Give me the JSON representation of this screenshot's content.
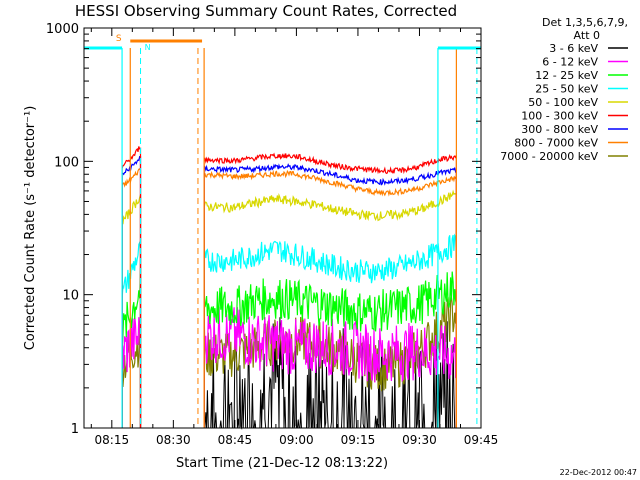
{
  "chart_data": {
    "type": "line",
    "title": "HESSI Observing Summary Count Rates, Corrected",
    "xlabel": "Start Time (21-Dec-12 08:13:22)",
    "ylabel": "Corrected Count Rate (s⁻¹ detector⁻¹)",
    "y_scale": "log",
    "ylim": [
      1,
      1000
    ],
    "xlim_minutes": [
      8.22,
      105.0
    ],
    "x_ticks": [
      {
        "label": "08:15",
        "t": 15
      },
      {
        "label": "08:30",
        "t": 30
      },
      {
        "label": "08:45",
        "t": 45
      },
      {
        "label": "09:00",
        "t": 60
      },
      {
        "label": "09:15",
        "t": 75
      },
      {
        "label": "09:30",
        "t": 90
      },
      {
        "label": "09:45",
        "t": 105
      }
    ],
    "y_ticks": [
      {
        "label": "1",
        "v": 1
      },
      {
        "label": "10",
        "v": 10
      },
      {
        "label": "100",
        "v": 100
      },
      {
        "label": "1000",
        "v": 1000
      }
    ],
    "legend": {
      "placement": "right",
      "header": [
        "Det 1,3,5,6,7,9,",
        "Att 0"
      ],
      "entries": [
        {
          "label": "3 - 6 keV",
          "color": "#000000"
        },
        {
          "label": "6 - 12 keV",
          "color": "#ff00ff"
        },
        {
          "label": "12 - 25 keV",
          "color": "#00ff00"
        },
        {
          "label": "25 - 50 keV",
          "color": "#00ffff"
        },
        {
          "label": "50 - 100 keV",
          "color": "#d8d800"
        },
        {
          "label": "100 - 300 keV",
          "color": "#ff0000"
        },
        {
          "label": "300 - 800 keV",
          "color": "#0000ff"
        },
        {
          "label": "800 - 7000 keV",
          "color": "#ff8000"
        },
        {
          "label": "7000 - 20000 keV",
          "color": "#808000"
        }
      ]
    },
    "data_gap_minutes": [
      22.5,
      37.5
    ],
    "series": [
      {
        "name": "100 - 300 keV",
        "color": "#ff0000",
        "segments": [
          {
            "t": [
              17.5,
              19.0,
              20.5,
              22.0
            ],
            "v": [
              92,
              100,
              112,
              130
            ]
          },
          {
            "t": [
              37.5,
              45,
              50,
              55,
              60,
              65,
              70,
              75,
              80,
              85,
              90,
              95,
              99
            ],
            "v": [
              103,
              101,
              106,
              110,
              109,
              100,
              92,
              88,
              85,
              85,
              91,
              103,
              108
            ]
          }
        ]
      },
      {
        "name": "300 - 800 keV",
        "color": "#0000ff",
        "segments": [
          {
            "t": [
              17.5,
              19.0,
              20.5,
              22.0
            ],
            "v": [
              80,
              86,
              95,
              108
            ]
          },
          {
            "t": [
              37.5,
              45,
              50,
              55,
              60,
              65,
              70,
              75,
              80,
              85,
              90,
              95,
              99
            ],
            "v": [
              88,
              86,
              88,
              91,
              90,
              85,
              78,
              72,
              70,
              71,
              75,
              82,
              85
            ]
          }
        ]
      },
      {
        "name": "800 - 7000 keV",
        "color": "#ff8000",
        "segments": [
          {
            "t": [
              17.5,
              19.0,
              20.5,
              22.0
            ],
            "v": [
              65,
              70,
              78,
              88
            ]
          },
          {
            "t": [
              37.5,
              45,
              50,
              55,
              60,
              65,
              70,
              75,
              80,
              85,
              90,
              95,
              99
            ],
            "v": [
              80,
              77,
              78,
              81,
              80,
              74,
              68,
              62,
              58,
              59,
              63,
              70,
              75
            ]
          }
        ]
      },
      {
        "name": "50 - 100 keV",
        "color": "#d8d800",
        "segments": [
          {
            "t": [
              17.5,
              19.0,
              20.5,
              22.0
            ],
            "v": [
              35,
              40,
              47,
              55
            ]
          },
          {
            "t": [
              37.5,
              45,
              50,
              55,
              60,
              65,
              70,
              75,
              80,
              85,
              90,
              95,
              99
            ],
            "v": [
              46,
              45,
              49,
              52,
              50,
              47,
              43,
              40,
              39,
              40,
              43,
              50,
              58
            ]
          }
        ]
      },
      {
        "name": "25 - 50 keV",
        "color": "#00ffff",
        "segments": [
          {
            "t": [
              17.5,
              19.0,
              20.5,
              22.0
            ],
            "v": [
              10,
              13,
              17,
              22
            ]
          },
          {
            "t": [
              37.5,
              45,
              50,
              55,
              60,
              65,
              70,
              75,
              80,
              85,
              90,
              95,
              99
            ],
            "v": [
              18,
              18,
              20,
              22,
              20,
              18,
              16,
              15,
              15,
              16,
              18,
              21,
              24
            ]
          }
        ]
      },
      {
        "name": "12 - 25 keV",
        "color": "#00ff00",
        "segments": [
          {
            "t": [
              17.5,
              19.0,
              20.5,
              22.0
            ],
            "v": [
              5,
              6.5,
              8.5,
              11
            ]
          },
          {
            "t": [
              37.5,
              45,
              50,
              55,
              60,
              65,
              70,
              75,
              80,
              85,
              90,
              95,
              99
            ],
            "v": [
              8,
              8,
              9,
              9.5,
              9,
              8.5,
              8,
              7.5,
              7.5,
              8,
              8.5,
              10,
              11.5
            ]
          }
        ]
      },
      {
        "name": "6 - 12 keV",
        "color": "#ff00ff",
        "segments": [
          {
            "t": [
              17.5,
              19.0,
              20.5,
              22.0
            ],
            "v": [
              3.5,
              4,
              4.5,
              5
            ]
          },
          {
            "t": [
              37.5,
              45,
              50,
              55,
              60,
              65,
              70,
              75,
              80,
              85,
              90,
              95,
              99
            ],
            "v": [
              5,
              5,
              4.5,
              4.3,
              4,
              4.2,
              4,
              3.8,
              3.6,
              3.7,
              3.8,
              3.6,
              3.5
            ]
          }
        ]
      },
      {
        "name": "7000 - 20000 keV",
        "color": "#808000",
        "segments": [
          {
            "t": [
              17.5,
              19.0,
              20.5,
              22.0
            ],
            "v": [
              3,
              3.5,
              4,
              4.5
            ]
          },
          {
            "t": [
              37.5,
              45,
              50,
              55,
              60,
              65,
              70,
              75,
              80,
              85,
              90,
              95,
              99
            ],
            "v": [
              3.5,
              3.6,
              4,
              4.5,
              4.6,
              4.3,
              3.8,
              3.2,
              2.8,
              3,
              3.8,
              5.5,
              7.5
            ]
          }
        ]
      },
      {
        "name": "3 - 6 keV",
        "color": "#000000",
        "segments": [
          {
            "t": [
              37.5,
              45,
              50,
              55,
              60,
              65,
              70,
              75,
              80,
              85,
              90,
              95,
              99
            ],
            "v": [
              1.5,
              1.8,
              2,
              2.2,
              1.5,
              1.3,
              1.8,
              1.6,
              1.4,
              1.5,
              1.6,
              1.8,
              2
            ]
          }
        ]
      }
    ],
    "markers": {
      "saa_label": "S",
      "night_label": "N",
      "saa_color": "#ff8000",
      "night_color": "#00ffff",
      "saa_bar_minutes": [
        19.5,
        37.0
      ],
      "night_bars_minutes": [
        [
          8.22,
          17.5
        ],
        [
          94.5,
          105.0
        ]
      ],
      "solid_lines": [
        {
          "t": 17.5,
          "color": "#00ffff"
        },
        {
          "t": 19.5,
          "color": "#ff8000"
        },
        {
          "t": 37.5,
          "color": "#ff8000"
        },
        {
          "t": 94.5,
          "color": "#00ffff"
        },
        {
          "t": 99.0,
          "color": "#ff8000"
        }
      ],
      "dashed_lines": [
        {
          "t": 22.0,
          "color": "#00ffff"
        },
        {
          "t": 36.0,
          "color": "#ff8000"
        },
        {
          "t": 104.0,
          "color": "#00ffff"
        }
      ]
    }
  },
  "footer": {
    "timestamp": "22-Dec-2012 00:47"
  }
}
